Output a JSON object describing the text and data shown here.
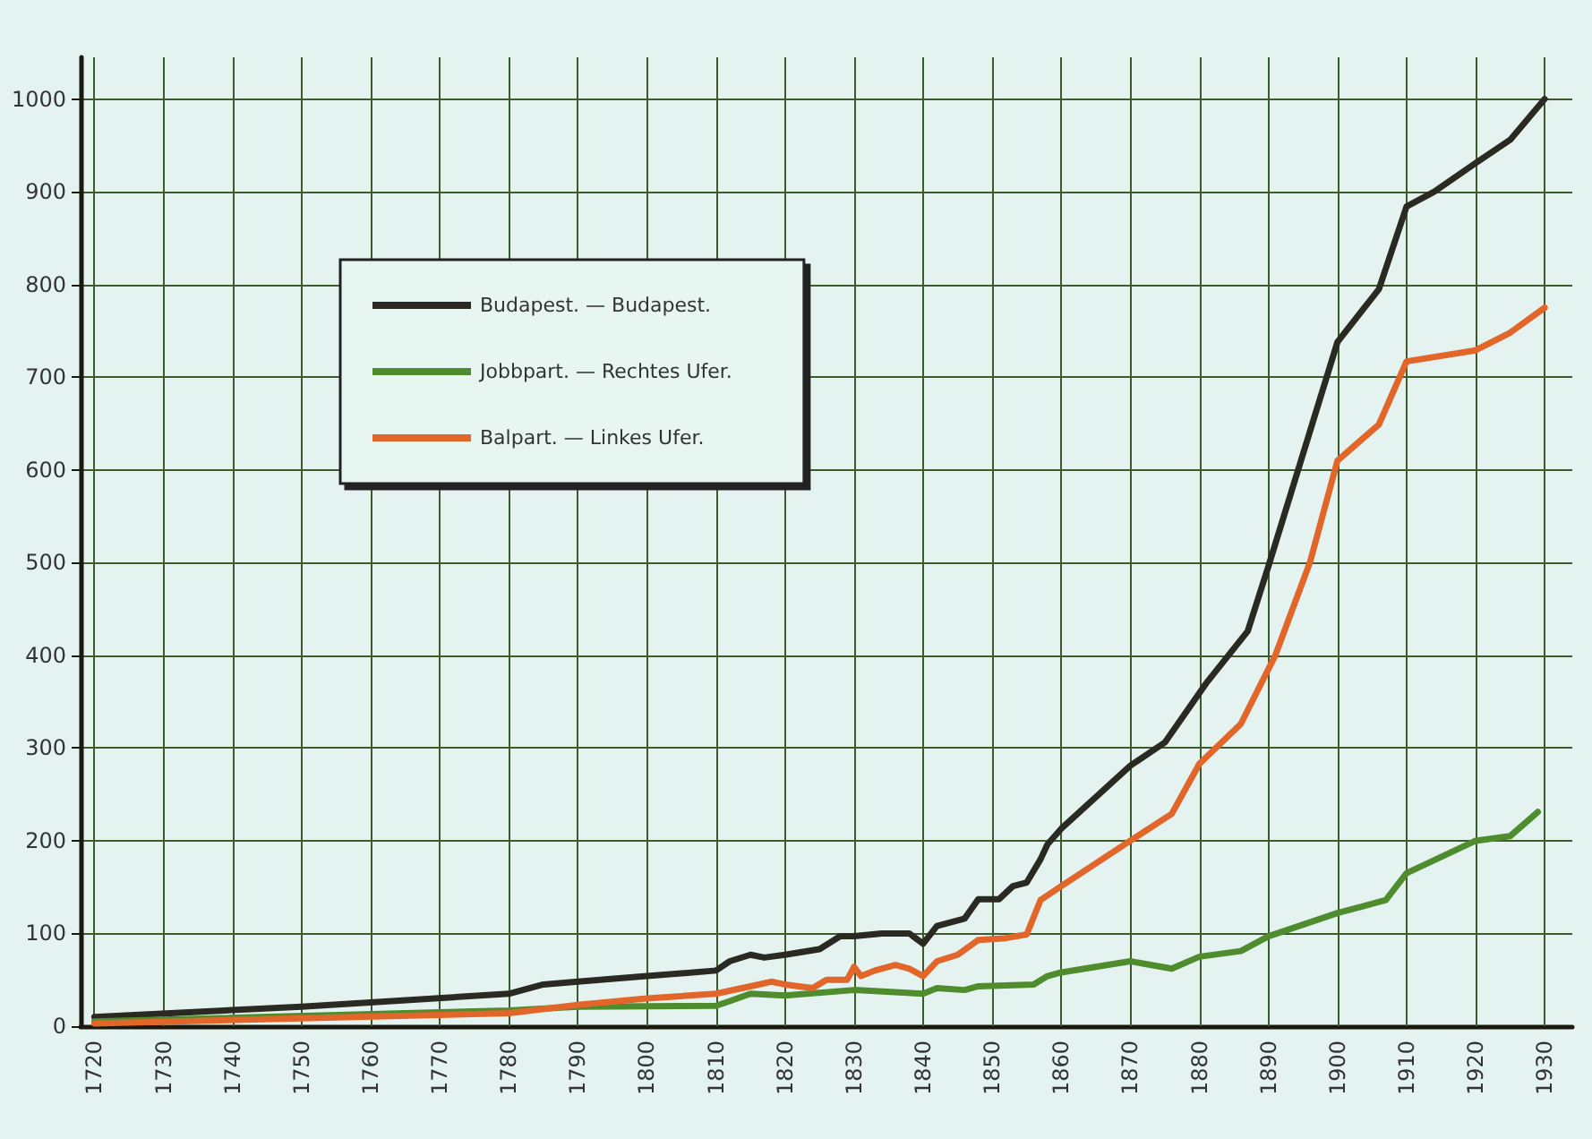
{
  "chart_data": {
    "type": "line",
    "xlim": [
      1718,
      1934
    ],
    "ylim": [
      0,
      1045
    ],
    "xticks": [
      1720,
      1730,
      1740,
      1750,
      1760,
      1770,
      1780,
      1790,
      1800,
      1810,
      1820,
      1830,
      1840,
      1850,
      1860,
      1870,
      1880,
      1890,
      1900,
      1910,
      1920,
      1930
    ],
    "yticks": [
      0,
      100,
      200,
      300,
      400,
      500,
      600,
      700,
      800,
      900,
      1000
    ],
    "grid": true,
    "legend": "top left",
    "marker": "none",
    "line_style": "solid",
    "series": [
      {
        "name": "Budapest. — Budapest.",
        "color": "#2b2a22",
        "x": [
          1720,
          1750,
          1780,
          1785,
          1790,
          1800,
          1810,
          1812,
          1815,
          1817,
          1820,
          1825,
          1828,
          1830,
          1834,
          1838,
          1840,
          1842,
          1846,
          1848,
          1851,
          1853,
          1855,
          1857,
          1858,
          1860,
          1870,
          1875,
          1881,
          1887,
          1890,
          1900,
          1906,
          1910,
          1914,
          1920,
          1925,
          1930
        ],
        "values": [
          10,
          21,
          35,
          45,
          48,
          54,
          60,
          70,
          77,
          74,
          77,
          83,
          97,
          97,
          100,
          100,
          89,
          108,
          116,
          137,
          137,
          151,
          155,
          180,
          196,
          213,
          281,
          306,
          370,
          426,
          496,
          738,
          795,
          884,
          900,
          931,
          956,
          1000
        ]
      },
      {
        "name": "Jobbpart. — Rechtes Ufer.",
        "color": "#4e8c2e",
        "x": [
          1720,
          1780,
          1790,
          1810,
          1812,
          1815,
          1820,
          1830,
          1840,
          1842,
          1846,
          1848,
          1852,
          1856,
          1858,
          1860,
          1870,
          1876,
          1880,
          1886,
          1890,
          1900,
          1907,
          1910,
          1920,
          1925,
          1929
        ],
        "values": [
          5,
          17,
          21,
          22,
          27,
          35,
          33,
          39,
          35,
          41,
          39,
          43,
          44,
          45,
          54,
          58,
          70,
          62,
          75,
          81,
          97,
          122,
          136,
          165,
          200,
          205,
          231
        ]
      },
      {
        "name": "Balpart. — Linkes Ufer.",
        "color": "#e2662a",
        "x": [
          1720,
          1780,
          1790,
          1800,
          1810,
          1815,
          1818,
          1820,
          1824,
          1826,
          1829,
          1830,
          1831,
          1833,
          1836,
          1838,
          1840,
          1842,
          1845,
          1848,
          1852,
          1855,
          1857,
          1860,
          1870,
          1876,
          1880,
          1886,
          1891,
          1896,
          1900,
          1906,
          1910,
          1920,
          1925,
          1930
        ],
        "values": [
          3,
          14,
          23,
          30,
          35,
          43,
          48,
          45,
          41,
          50,
          50,
          64,
          54,
          60,
          66,
          62,
          54,
          70,
          77,
          93,
          95,
          99,
          136,
          151,
          200,
          229,
          283,
          326,
          400,
          500,
          610,
          649,
          717,
          729,
          748,
          775
        ]
      }
    ]
  }
}
